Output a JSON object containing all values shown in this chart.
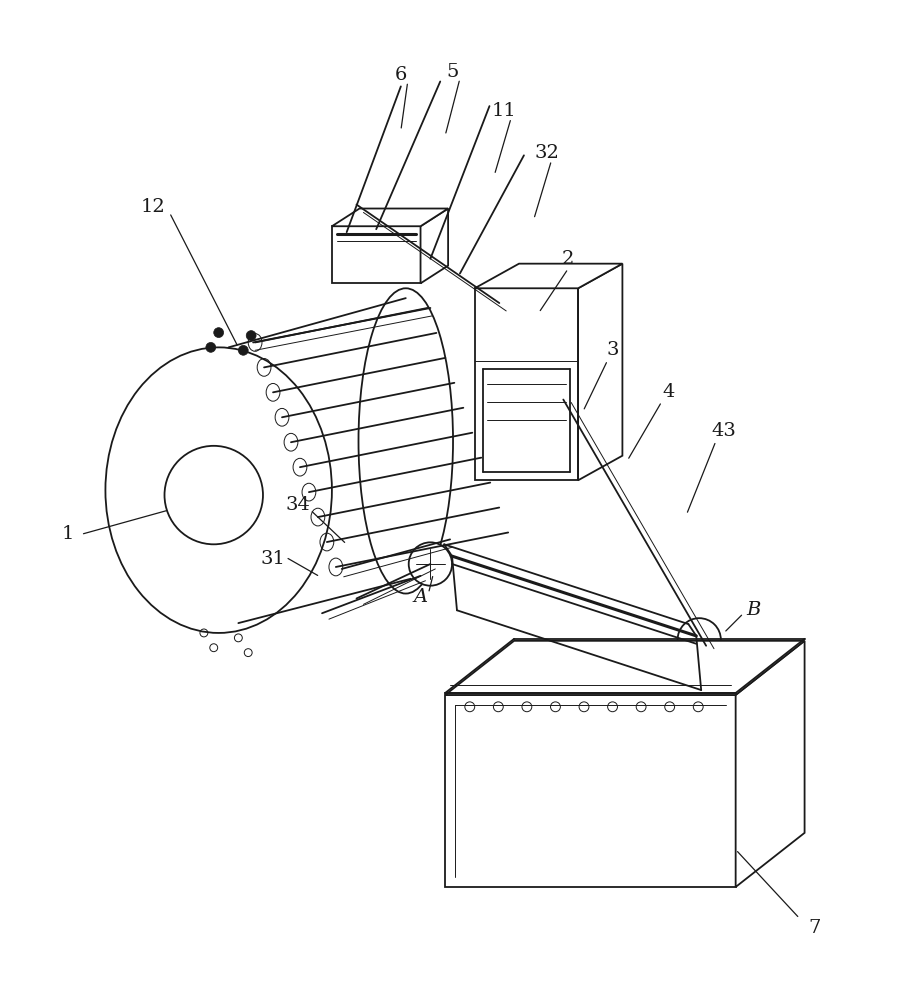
{
  "bg_color": "#ffffff",
  "line_color": "#1a1a1a",
  "lw": 1.3,
  "lw_thick": 2.2,
  "lw_thin": 0.7
}
